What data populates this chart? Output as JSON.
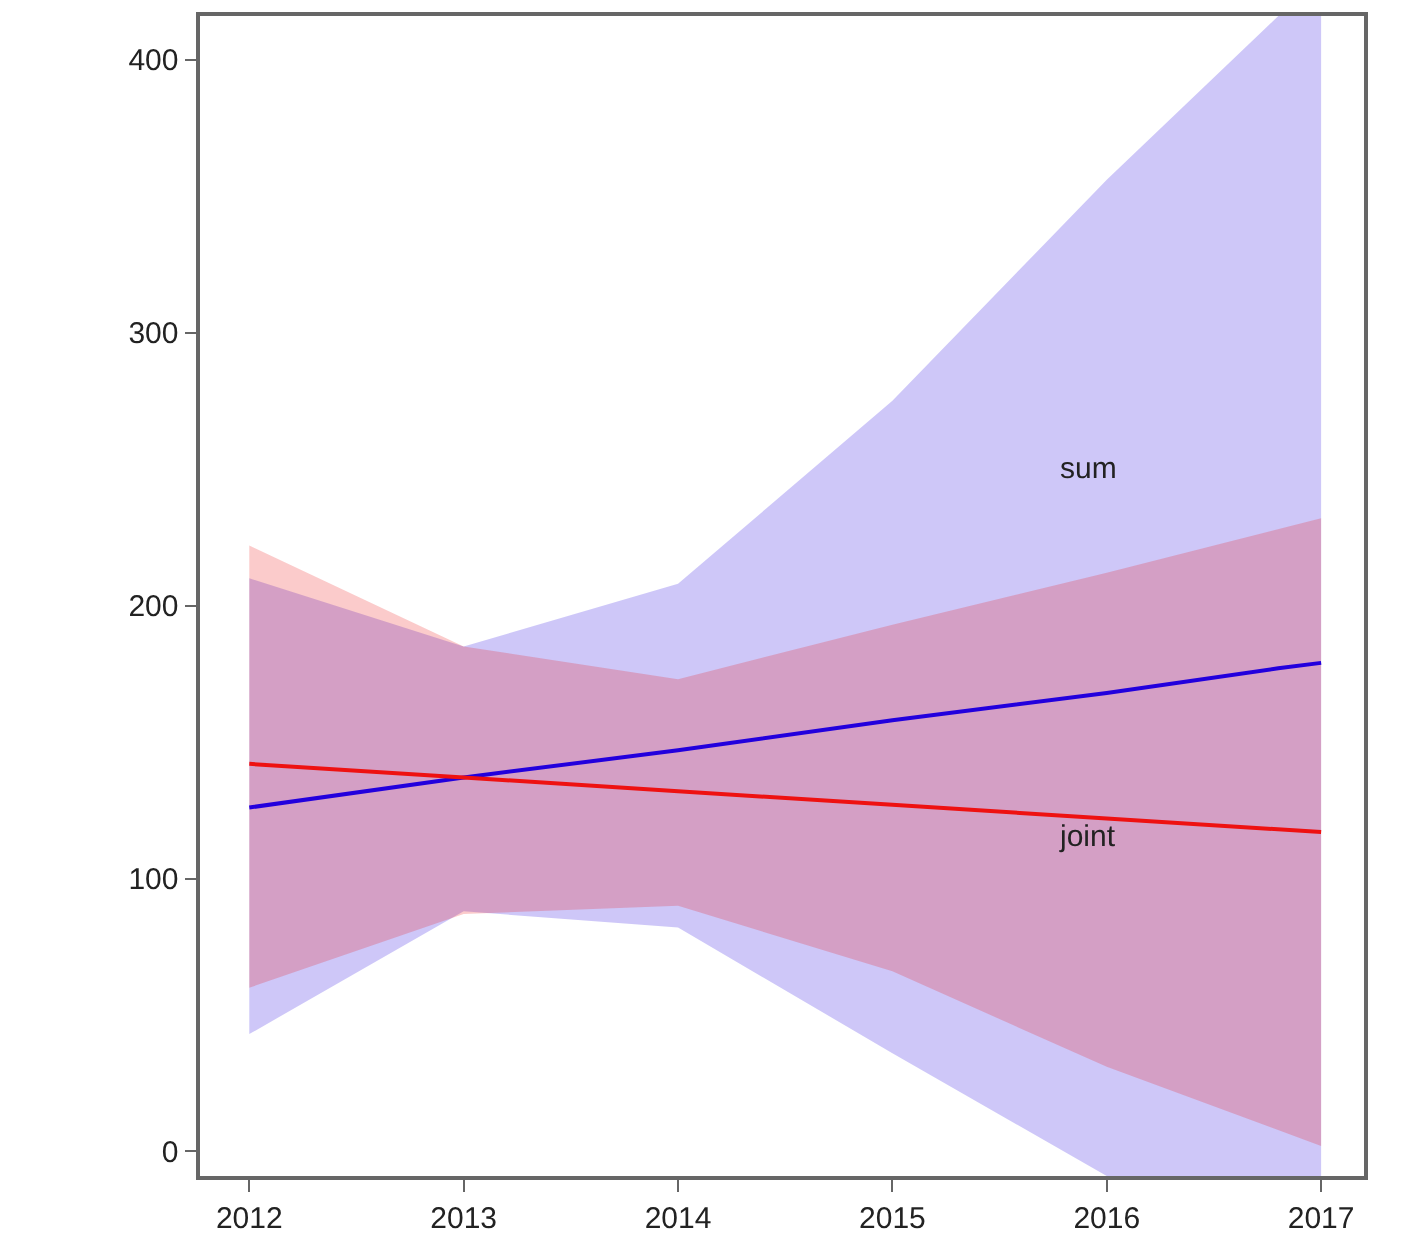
{
  "chart_data": {
    "type": "line",
    "x": [
      2012,
      2013,
      2014,
      2015,
      2016,
      2017
    ],
    "series": [
      {
        "color": "#2200dd",
        "x": [
          2012,
          2013,
          2014,
          2015,
          2016,
          2016.8,
          2017
        ],
        "values": [
          126,
          137,
          147,
          158,
          168,
          177,
          179
        ],
        "lower": [
          43,
          88,
          82,
          36,
          -9,
          -9,
          -9
        ],
        "upper": [
          210,
          185,
          208,
          275,
          356,
          416,
          416
        ]
      },
      {
        "color": "#ee1111",
        "values": [
          142,
          137,
          132,
          127,
          122,
          117
        ],
        "lower": [
          60,
          87,
          90,
          66,
          31,
          2
        ],
        "upper": [
          222,
          185,
          173,
          193,
          212,
          232
        ]
      }
    ],
    "annotations": [
      "sum",
      "joint"
    ],
    "xlim": [
      2011.77,
      2017.2
    ],
    "xticks": [
      2012,
      2013,
      2014,
      2015,
      2016,
      2017
    ],
    "ylim": [
      -9,
      416
    ],
    "yticks": [
      0,
      100,
      200,
      300,
      400
    ],
    "grid": false,
    "line_style": "solid",
    "marker": "none"
  }
}
